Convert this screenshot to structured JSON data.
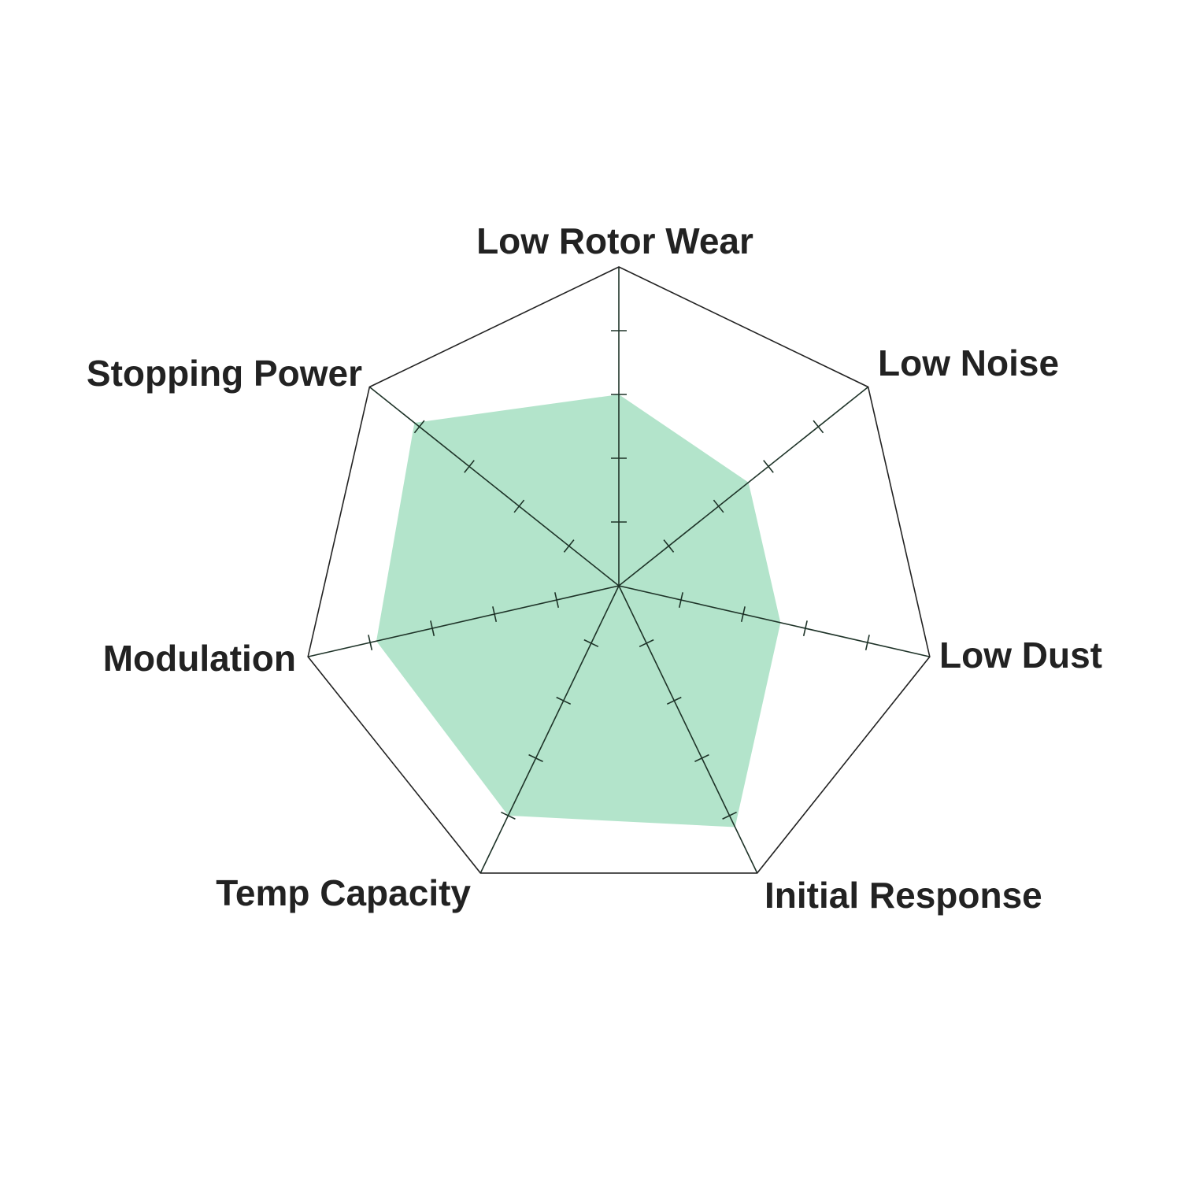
{
  "chart_data": {
    "type": "radar",
    "title": "",
    "axes": [
      "Low Rotor Wear",
      "Low Noise",
      "Low Dust",
      "Initial Response",
      "Temp Capacity",
      "Modulation",
      "Stopping Power"
    ],
    "values": [
      3,
      2.6,
      2.6,
      4.2,
      4,
      3.9,
      4.1
    ],
    "range": [
      0,
      5
    ],
    "tick_step": 1,
    "grid": false,
    "fill_color": "#b3e4cb",
    "axis_color": "#1e3328",
    "outline_color": "#222222"
  }
}
